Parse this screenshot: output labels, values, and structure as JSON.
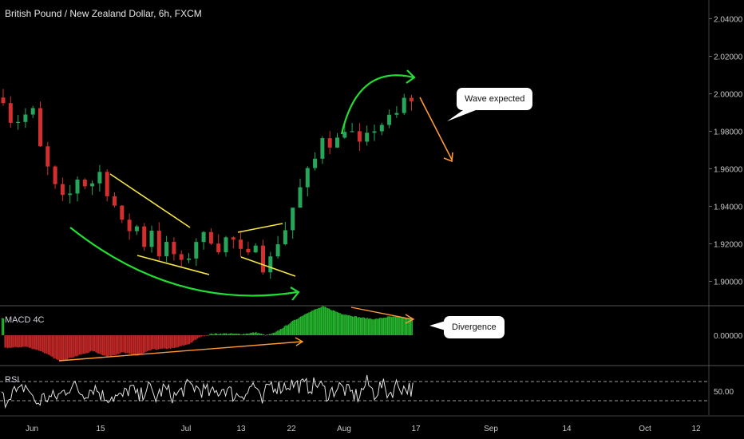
{
  "header": {
    "title": "British Pound / New Zealand Dollar, 6h, FXCM"
  },
  "panes": {
    "macd_label": "MACD 4C",
    "rsi_label": "RSI"
  },
  "callouts": {
    "wave": "Wave expected",
    "divergence": "Divergence"
  },
  "colors": {
    "background": "#000000",
    "bull": "#26a65b",
    "bear": "#d32f2f",
    "annotation_green": "#22dd33",
    "annotation_yellow": "#f5e642",
    "annotation_orange": "#ff9933",
    "rsi_line": "#e0e0e0",
    "axis_text": "#c8c8c8"
  },
  "chart_data": [
    {
      "type": "candlestick",
      "title": "British Pound / New Zealand Dollar, 6h, FXCM",
      "x_ticks": [
        "Jun",
        "15",
        "Jul",
        "13",
        "22",
        "Aug",
        "17",
        "Sep",
        "14",
        "Oct",
        "12"
      ],
      "y_ticks": [
        "1.90000",
        "1.92000",
        "1.94000",
        "1.96000",
        "1.98000",
        "2.00000",
        "2.02000",
        "2.04000"
      ],
      "ylim": [
        1.887,
        2.05
      ],
      "close_path": [
        {
          "t": 0,
          "v": 1.998
        },
        {
          "t": 0.8,
          "v": 1.985
        },
        {
          "t": 1.6,
          "v": 1.99
        },
        {
          "t": 2.4,
          "v": 1.982
        },
        {
          "t": 3.3,
          "v": 1.992
        },
        {
          "t": 4.2,
          "v": 1.99
        },
        {
          "t": 4.6,
          "v": 1.975
        },
        {
          "t": 6.2,
          "v": 1.958
        },
        {
          "t": 7.5,
          "v": 1.945
        },
        {
          "t": 8.5,
          "v": 1.942
        },
        {
          "t": 10,
          "v": 1.955
        },
        {
          "t": 11.5,
          "v": 1.95
        },
        {
          "t": 13,
          "v": 1.958
        },
        {
          "t": 14,
          "v": 1.948
        },
        {
          "t": 15.3,
          "v": 1.938
        },
        {
          "t": 16.5,
          "v": 1.925
        },
        {
          "t": 17.8,
          "v": 1.932
        },
        {
          "t": 18.8,
          "v": 1.918
        },
        {
          "t": 20,
          "v": 1.928
        },
        {
          "t": 21,
          "v": 1.915
        },
        {
          "t": 22.3,
          "v": 1.92
        },
        {
          "t": 23.8,
          "v": 1.908
        },
        {
          "t": 24.8,
          "v": 1.912
        },
        {
          "t": 26,
          "v": 1.922
        },
        {
          "t": 27.5,
          "v": 1.925
        },
        {
          "t": 29,
          "v": 1.918
        },
        {
          "t": 30.5,
          "v": 1.925
        },
        {
          "t": 32,
          "v": 1.915
        },
        {
          "t": 33.5,
          "v": 1.912
        },
        {
          "t": 34.3,
          "v": 1.928
        },
        {
          "t": 35.2,
          "v": 1.902
        },
        {
          "t": 36.5,
          "v": 1.918
        },
        {
          "t": 38,
          "v": 1.928
        },
        {
          "t": 39.5,
          "v": 1.945
        },
        {
          "t": 41,
          "v": 1.958
        },
        {
          "t": 42,
          "v": 1.965
        },
        {
          "t": 43,
          "v": 1.978
        },
        {
          "t": 44.5,
          "v": 1.972
        },
        {
          "t": 46,
          "v": 1.982
        },
        {
          "t": 47.3,
          "v": 1.978
        },
        {
          "t": 48.5,
          "v": 1.968
        },
        {
          "t": 49.5,
          "v": 1.985
        },
        {
          "t": 50.5,
          "v": 1.978
        },
        {
          "t": 51.5,
          "v": 1.99
        },
        {
          "t": 52.5,
          "v": 1.983
        },
        {
          "t": 53.5,
          "v": 1.995
        },
        {
          "t": 54.5,
          "v": 1.998
        },
        {
          "t": 55,
          "v": 2.002
        }
      ],
      "last_close": 1.996
    },
    {
      "type": "histogram",
      "title": "MACD 4C",
      "y_ticks": [
        "0.00000"
      ],
      "profile": [
        {
          "t": 0,
          "v": -0.45
        },
        {
          "t": 3,
          "v": -0.4
        },
        {
          "t": 5,
          "v": -0.55
        },
        {
          "t": 7.5,
          "v": -0.9
        },
        {
          "t": 9.5,
          "v": -0.75
        },
        {
          "t": 12,
          "v": -0.55
        },
        {
          "t": 14,
          "v": -0.75
        },
        {
          "t": 16,
          "v": -0.6
        },
        {
          "t": 18,
          "v": -0.72
        },
        {
          "t": 20,
          "v": -0.5
        },
        {
          "t": 23,
          "v": -0.45
        },
        {
          "t": 25,
          "v": -0.3
        },
        {
          "t": 26.5,
          "v": -0.05
        },
        {
          "t": 28,
          "v": 0.05
        },
        {
          "t": 30,
          "v": 0.06
        },
        {
          "t": 32,
          "v": 0.04
        },
        {
          "t": 34,
          "v": 0.1
        },
        {
          "t": 35.3,
          "v": 0.0
        },
        {
          "t": 36.5,
          "v": 0.08
        },
        {
          "t": 39,
          "v": 0.5
        },
        {
          "t": 41,
          "v": 0.8
        },
        {
          "t": 43,
          "v": 1.0
        },
        {
          "t": 45.5,
          "v": 0.75
        },
        {
          "t": 48,
          "v": 0.62
        },
        {
          "t": 50,
          "v": 0.56
        },
        {
          "t": 52,
          "v": 0.65
        },
        {
          "t": 55,
          "v": 0.58
        }
      ]
    },
    {
      "type": "line",
      "title": "RSI",
      "y_ticks": [
        "50.00"
      ],
      "ylim": [
        0,
        100
      ],
      "bands": [
        30,
        70
      ]
    }
  ]
}
